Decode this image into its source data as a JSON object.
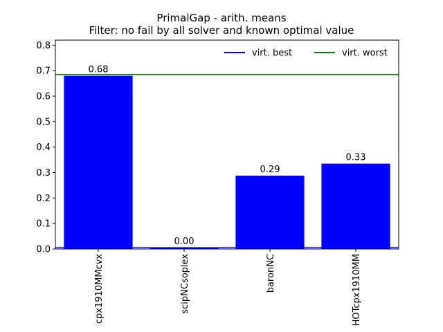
{
  "chart_data": {
    "type": "bar",
    "title": "PrimalGap - arith. means",
    "subtitle": "Filter: no fail by all solver and known optimal value",
    "xlabel": "",
    "ylabel": "",
    "categories": [
      "cpx1910MMcvx",
      "scipNCsoplex",
      "baronNC",
      "HOTcpx1910MM"
    ],
    "values": [
      0.68,
      0.005,
      0.288,
      0.335
    ],
    "value_labels": [
      "0.68",
      "0.00",
      "0.29",
      "0.33"
    ],
    "ylim": [
      0,
      0.82
    ],
    "yticks": [
      0.0,
      0.1,
      0.2,
      0.3,
      0.4,
      0.5,
      0.6,
      0.7,
      0.8
    ],
    "ytick_labels": [
      "0.0",
      "0.1",
      "0.2",
      "0.3",
      "0.4",
      "0.5",
      "0.6",
      "0.7",
      "0.8"
    ],
    "bar_color": "#0000ff",
    "grid": false,
    "legend_position": "top-right",
    "reference_lines": [
      {
        "name": "virt. best",
        "value": 0.005,
        "color": "#0000ff"
      },
      {
        "name": "virt. worst",
        "value": 0.685,
        "color": "#008000"
      }
    ]
  }
}
